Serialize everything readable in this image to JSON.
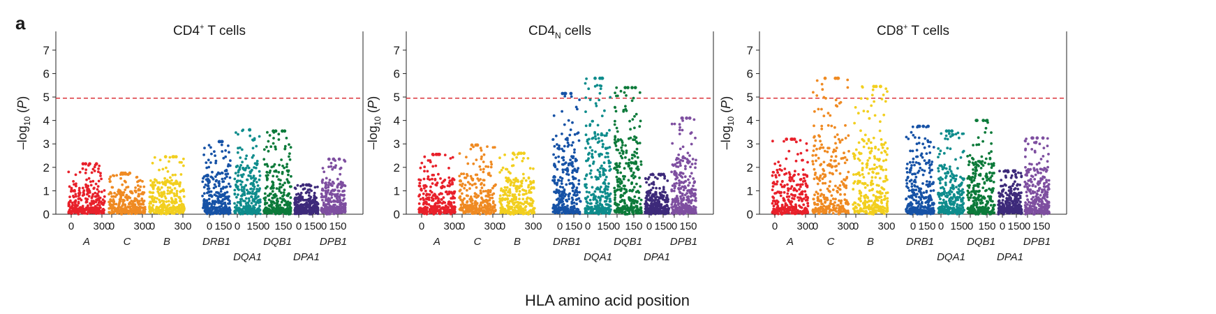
{
  "panel_label": "a",
  "figure_xlabel": "HLA amino acid position",
  "ylabel": {
    "pre": "–log",
    "sub": "10",
    "post": " (",
    "var": "P",
    "close": ")"
  },
  "threshold": 4.95,
  "ylim": [
    0,
    7.8
  ],
  "y_ticks": [
    "0",
    "1",
    "2",
    "3",
    "4",
    "5",
    "6",
    "7"
  ],
  "genes": [
    {
      "name": "A",
      "label_row": 1,
      "ticks": [
        "0",
        "300"
      ],
      "color": "#e8202a"
    },
    {
      "name": "C",
      "label_row": 1,
      "ticks": [
        "0",
        "300"
      ],
      "color": "#ef8a22"
    },
    {
      "name": "B",
      "label_row": 1,
      "ticks": [
        "0",
        "300"
      ],
      "color": "#f2cf1f"
    },
    {
      "name": "DRB1",
      "label_row": 1,
      "ticks": [
        "0",
        "150"
      ],
      "color": "#1652a6"
    },
    {
      "name": "DQA1",
      "label_row": 2,
      "ticks": [
        "0",
        "150"
      ],
      "color": "#0e8c8c"
    },
    {
      "name": "DQB1",
      "label_row": 1,
      "ticks": [
        "0",
        "150"
      ],
      "color": "#0c7a3a"
    },
    {
      "name": "DPA1",
      "label_row": 2,
      "ticks": [
        "0",
        "150"
      ],
      "color": "#3d2a7a"
    },
    {
      "name": "DPB1",
      "label_row": 1,
      "ticks": [
        "0",
        "150"
      ],
      "color": "#7e4fa0"
    }
  ],
  "chart_data": [
    {
      "type": "scatter",
      "title": {
        "main": "CD4",
        "sup": "+",
        "sub": "",
        "rest": " T cells"
      },
      "xlabel": "",
      "ylabel": "–log10 (P)",
      "ylim": [
        0,
        7.8
      ],
      "threshold": 4.95,
      "gene_max_values": {
        "A": 2.15,
        "C": 1.75,
        "B": 2.45,
        "DRB1": 3.1,
        "DQA1": 3.6,
        "DQB1": 3.55,
        "DPA1": 1.25,
        "DPB1": 2.35
      }
    },
    {
      "type": "scatter",
      "title": {
        "main": "CD4",
        "sup": "",
        "sub": "N",
        "rest": " cells"
      },
      "xlabel": "HLA amino acid position",
      "ylabel": "–log10 (P)",
      "ylim": [
        0,
        7.8
      ],
      "threshold": 4.95,
      "gene_max_values": {
        "A": 2.55,
        "C": 2.95,
        "B": 2.6,
        "DRB1": 5.15,
        "DQA1": 5.8,
        "DQB1": 5.4,
        "DPA1": 1.7,
        "DPB1": 4.1
      }
    },
    {
      "type": "scatter",
      "title": {
        "main": "CD8",
        "sup": "+",
        "sub": "",
        "rest": " T cells"
      },
      "xlabel": "",
      "ylabel": "–log10 (P)",
      "ylim": [
        0,
        7.8
      ],
      "threshold": 4.95,
      "gene_max_values": {
        "A": 3.2,
        "C": 5.8,
        "B": 5.45,
        "DRB1": 3.75,
        "DQA1": 3.55,
        "DQB1": 4.0,
        "DPA1": 1.85,
        "DPB1": 3.25
      }
    }
  ]
}
